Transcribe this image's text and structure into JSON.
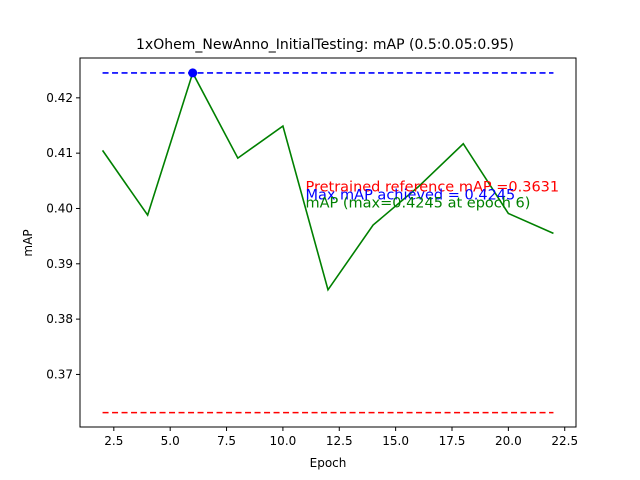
{
  "chart_data": {
    "type": "line",
    "title": "1xOhem_NewAnno_InitialTesting:  mAP (0.5:0.05:0.95)",
    "xlabel": "Epoch",
    "ylabel": "mAP",
    "xlim": [
      1.0,
      23.0
    ],
    "ylim": [
      0.3605,
      0.4272
    ],
    "grid": false,
    "x_ticks": [
      2.5,
      5.0,
      7.5,
      10.0,
      12.5,
      15.0,
      17.5,
      20.0,
      22.5
    ],
    "x_tick_labels": [
      "2.5",
      "5.0",
      "7.5",
      "10.0",
      "12.5",
      "15.0",
      "17.5",
      "20.0",
      "22.5"
    ],
    "y_ticks": [
      0.37,
      0.38,
      0.39,
      0.4,
      0.41,
      0.42
    ],
    "y_tick_labels": [
      "0.37",
      "0.38",
      "0.39",
      "0.40",
      "0.41",
      "0.42"
    ],
    "series": [
      {
        "kind": "line",
        "color": "#008000",
        "style": "solid",
        "x": [
          2,
          4,
          6,
          8,
          10,
          12,
          14,
          16,
          18,
          20,
          22
        ],
        "y": [
          0.4105,
          0.3988,
          0.4245,
          0.4091,
          0.4149,
          0.3853,
          0.397,
          0.4039,
          0.4117,
          0.3991,
          0.3955
        ]
      },
      {
        "kind": "hline",
        "color": "#0000ff",
        "style": "dashed",
        "x": [
          2,
          22
        ],
        "y": [
          0.4245,
          0.4245
        ]
      },
      {
        "kind": "hline",
        "color": "#ff0000",
        "style": "dashed",
        "x": [
          2,
          22
        ],
        "y": [
          0.3631,
          0.3631
        ]
      },
      {
        "kind": "marker",
        "color": "#0000ff",
        "x": [
          6
        ],
        "y": [
          0.4245
        ]
      }
    ],
    "annotations": [
      {
        "text": "Pretrained reference mAP =0.3631",
        "color": "#ff0000",
        "x": 11,
        "y": 0.4031
      },
      {
        "text": "Max mAP achieved = 0.4245",
        "color": "#0000ff",
        "x": 11,
        "y": 0.4016
      },
      {
        "text": "mAP (max=0.4245 at epoch 6)",
        "color": "#008000",
        "x": 11,
        "y": 0.4002
      }
    ]
  }
}
